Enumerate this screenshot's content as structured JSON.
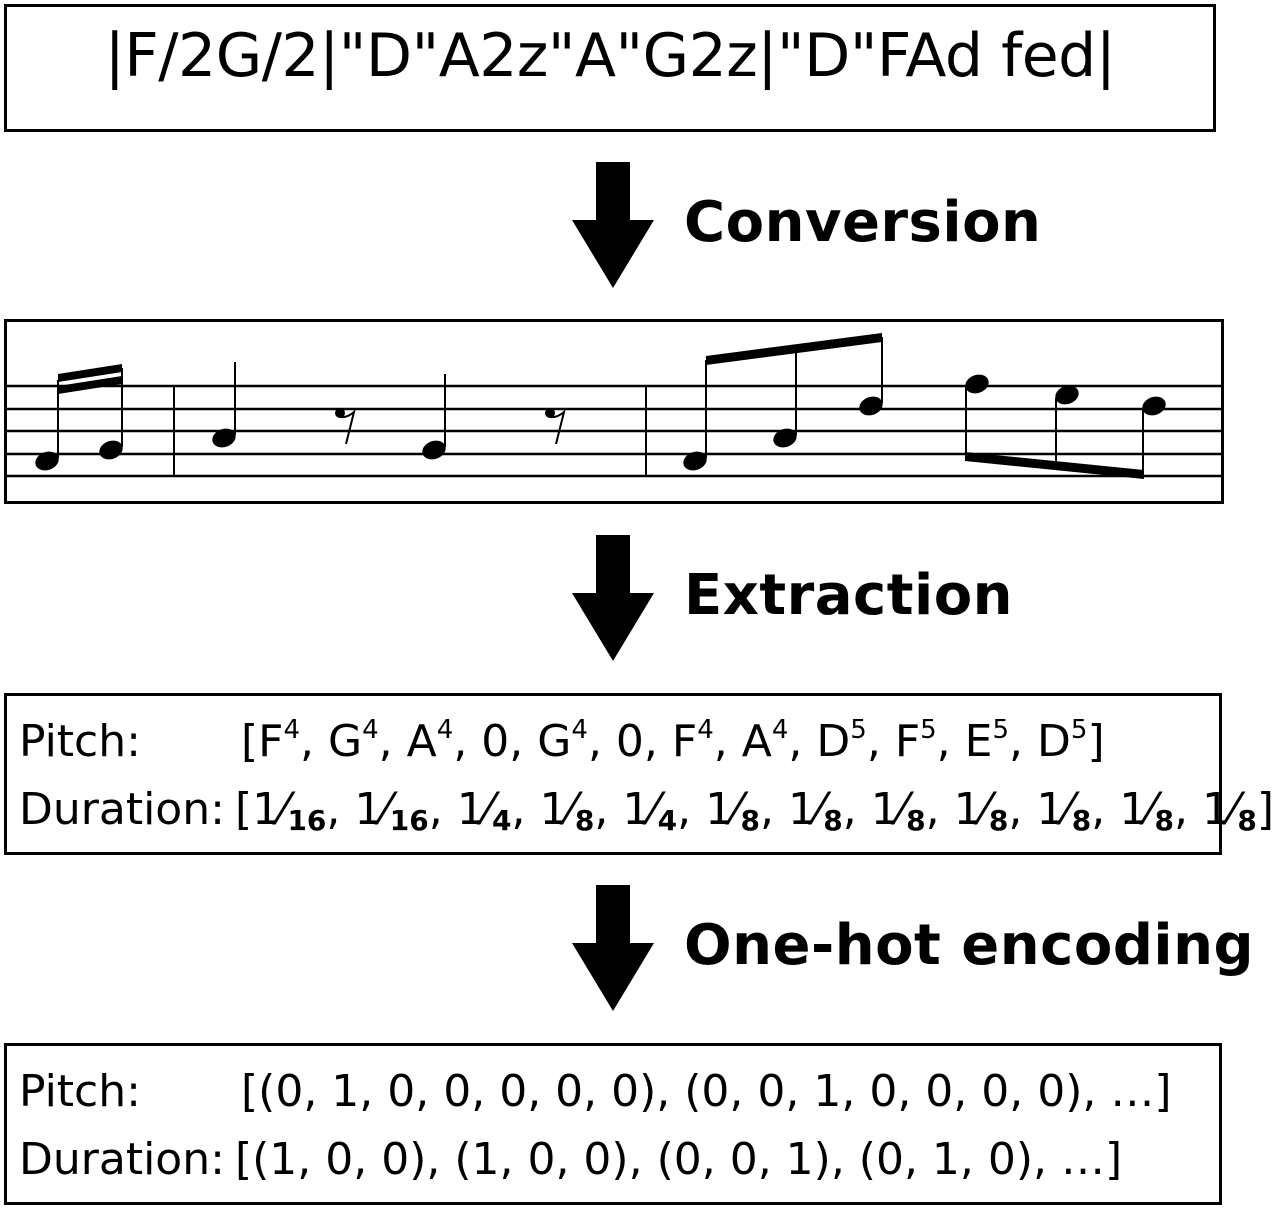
{
  "abc_notation": "|F/2G/2|\"D\"A2z\"A\"G2z|\"D\"FAd fed|",
  "steps": {
    "conversion": "Conversion",
    "extraction": "Extraction",
    "one_hot": "One-hot encoding"
  },
  "extraction": {
    "pitch_label": "Pitch:",
    "duration_label": "Duration:",
    "pitches": [
      {
        "note": "F",
        "octave": "4"
      },
      {
        "note": "G",
        "octave": "4"
      },
      {
        "note": "A",
        "octave": "4"
      },
      {
        "note": "0",
        "octave": ""
      },
      {
        "note": "G",
        "octave": "4"
      },
      {
        "note": "0",
        "octave": ""
      },
      {
        "note": "F",
        "octave": "4"
      },
      {
        "note": "A",
        "octave": "4"
      },
      {
        "note": "D",
        "octave": "5"
      },
      {
        "note": "F",
        "octave": "5"
      },
      {
        "note": "E",
        "octave": "5"
      },
      {
        "note": "D",
        "octave": "5"
      }
    ],
    "durations": [
      "16",
      "16",
      "4",
      "8",
      "4",
      "8",
      "8",
      "8",
      "8",
      "8",
      "8",
      "8"
    ],
    "duration_numerator": "1",
    "duration_slash": "⁄"
  },
  "one_hot": {
    "pitch_label": "Pitch:",
    "duration_label": "Duration:",
    "pitch_vectors": "[(0, 1, 0, 0, 0, 0, 0), (0, 0, 1, 0, 0, 0, 0), …]",
    "duration_vectors": "[(1, 0, 0), (1, 0, 0), (0, 0, 1), (0, 1, 0), …]"
  },
  "score": {
    "notes": [
      {
        "pitch": "F4",
        "duration": "1/16"
      },
      {
        "pitch": "G4",
        "duration": "1/16"
      },
      {
        "pitch": "A4",
        "duration": "1/4"
      },
      {
        "pitch": "rest",
        "duration": "1/8"
      },
      {
        "pitch": "G4",
        "duration": "1/4"
      },
      {
        "pitch": "rest",
        "duration": "1/8"
      },
      {
        "pitch": "F4",
        "duration": "1/8"
      },
      {
        "pitch": "A4",
        "duration": "1/8"
      },
      {
        "pitch": "D5",
        "duration": "1/8"
      },
      {
        "pitch": "F5",
        "duration": "1/8"
      },
      {
        "pitch": "E5",
        "duration": "1/8"
      },
      {
        "pitch": "D5",
        "duration": "1/8"
      }
    ]
  }
}
